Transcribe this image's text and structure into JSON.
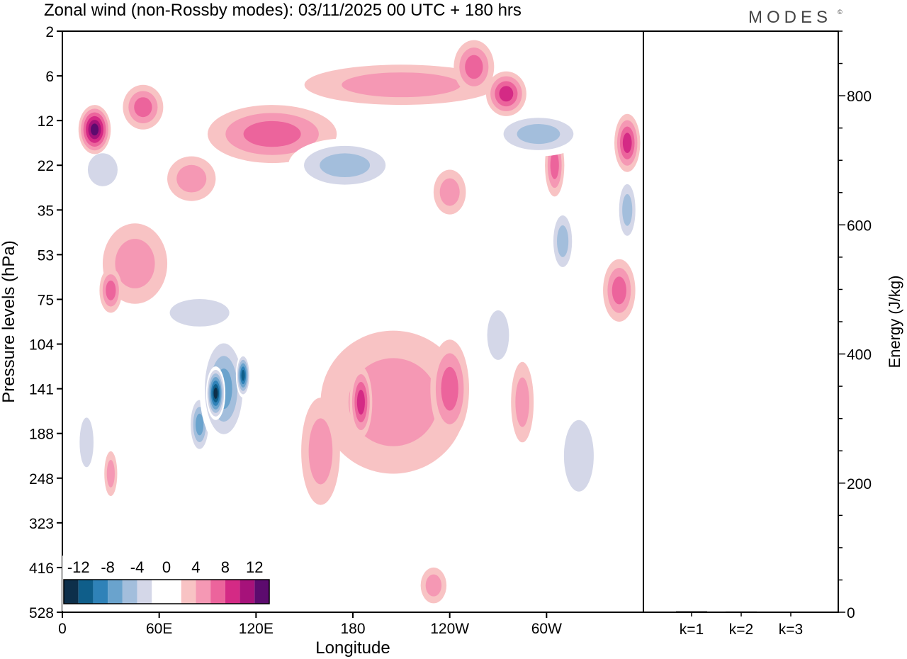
{
  "header": {
    "title": "Zonal wind (non-Rossby modes):  03/11/2025  00 UTC  + 180 hrs",
    "brand": "MODES",
    "brand_mark": "©"
  },
  "chart_data": [
    {
      "type": "heatmap",
      "title": "Zonal wind (non-Rossby modes)",
      "xlabel": "Longitude",
      "ylabel": "Pressure levels (hPa)",
      "x_ticks": [
        "0",
        "60E",
        "120E",
        "180",
        "120W",
        "60W"
      ],
      "x_tick_values": [
        0,
        60,
        120,
        180,
        240,
        300
      ],
      "xlim": [
        0,
        360
      ],
      "y_ticks": [
        "2",
        "6",
        "12",
        "22",
        "35",
        "53",
        "75",
        "104",
        "141",
        "188",
        "248",
        "323",
        "416",
        "528"
      ],
      "legend": {
        "labels": [
          "-12",
          "-8",
          "-4",
          "0",
          "4",
          "8",
          "12"
        ],
        "colors": [
          "#0d2f4a",
          "#0f5e8a",
          "#2f82b8",
          "#6aa3cd",
          "#a3bedc",
          "#d4d7e8",
          "#ffffff",
          "#ffffff",
          "#f8c3c4",
          "#f598b4",
          "#ec649c",
          "#d42a85",
          "#a6127a",
          "#5c0b6e"
        ],
        "placement": "bottom-left"
      },
      "blobs": [
        {
          "lon": 95,
          "lev": 8.1,
          "width": 12,
          "height": 1.2,
          "value": -13
        },
        {
          "lon": 112,
          "lev": 7.7,
          "width": 9,
          "height": 1.0,
          "value": -12
        },
        {
          "lon": 100,
          "lev": 8.0,
          "width": 30,
          "height": 2.6,
          "value": -8
        },
        {
          "lon": 85,
          "lev": 8.8,
          "width": 14,
          "height": 1.4,
          "value": -7
        },
        {
          "lon": 205,
          "lev": 8.3,
          "width": 90,
          "height": 3.2,
          "value": 4
        },
        {
          "lon": 185,
          "lev": 8.3,
          "width": 14,
          "height": 1.6,
          "value": 8
        },
        {
          "lon": 240,
          "lev": 8.0,
          "width": 24,
          "height": 2.2,
          "value": 6
        },
        {
          "lon": 160,
          "lev": 9.4,
          "width": 24,
          "height": 2.4,
          "value": 4
        },
        {
          "lon": 20,
          "lev": 2.2,
          "width": 20,
          "height": 1.1,
          "value": 12
        },
        {
          "lon": 50,
          "lev": 1.7,
          "width": 25,
          "height": 1.0,
          "value": 6
        },
        {
          "lon": 130,
          "lev": 2.3,
          "width": 80,
          "height": 1.3,
          "value": 5
        },
        {
          "lon": 210,
          "lev": 1.2,
          "width": 120,
          "height": 0.9,
          "value": 4
        },
        {
          "lon": 275,
          "lev": 1.4,
          "width": 25,
          "height": 1.0,
          "value": 8
        },
        {
          "lon": 255,
          "lev": 0.8,
          "width": 25,
          "height": 1.2,
          "value": 6
        },
        {
          "lon": 350,
          "lev": 2.5,
          "width": 16,
          "height": 1.3,
          "value": 8
        },
        {
          "lon": 305,
          "lev": 3.0,
          "width": 12,
          "height": 1.4,
          "value": 6
        },
        {
          "lon": 295,
          "lev": 2.3,
          "width": 60,
          "height": 1.0,
          "value": -6
        },
        {
          "lon": 175,
          "lev": 3.0,
          "width": 70,
          "height": 1.2,
          "value": -5
        },
        {
          "lon": 25,
          "lev": 3.1,
          "width": 30,
          "height": 1.2,
          "value": -4
        },
        {
          "lon": 350,
          "lev": 4.0,
          "width": 14,
          "height": 1.6,
          "value": -5
        },
        {
          "lon": 45,
          "lev": 5.2,
          "width": 40,
          "height": 1.8,
          "value": 4
        },
        {
          "lon": 30,
          "lev": 5.8,
          "width": 14,
          "height": 1.0,
          "value": 6
        },
        {
          "lon": 85,
          "lev": 6.3,
          "width": 60,
          "height": 1.0,
          "value": -4
        },
        {
          "lon": 310,
          "lev": 4.7,
          "width": 16,
          "height": 1.6,
          "value": -5
        },
        {
          "lon": 270,
          "lev": 6.8,
          "width": 22,
          "height": 1.8,
          "value": -4
        },
        {
          "lon": 345,
          "lev": 5.8,
          "width": 20,
          "height": 1.4,
          "value": 5
        },
        {
          "lon": 320,
          "lev": 9.5,
          "width": 30,
          "height": 2.6,
          "value": -3
        },
        {
          "lon": 15,
          "lev": 9.2,
          "width": 14,
          "height": 1.8,
          "value": -3
        },
        {
          "lon": 285,
          "lev": 8.3,
          "width": 14,
          "height": 1.8,
          "value": 4
        },
        {
          "lon": 230,
          "lev": 12.4,
          "width": 16,
          "height": 0.8,
          "value": 4
        },
        {
          "lon": 30,
          "lev": 9.9,
          "width": 8,
          "height": 1.0,
          "value": 4
        },
        {
          "lon": 240,
          "lev": 3.6,
          "width": 20,
          "height": 1.0,
          "value": 3
        },
        {
          "lon": 80,
          "lev": 3.3,
          "width": 30,
          "height": 1.0,
          "value": 3
        }
      ]
    },
    {
      "type": "bar",
      "categories": [
        "k=1",
        "k=2",
        "k=3"
      ],
      "values": [
        1.5,
        1.2,
        0.8
      ],
      "ylabel": "Energy (J/kg)",
      "ylim": [
        0,
        900
      ],
      "y_ticks": [
        0,
        200,
        400,
        600,
        800
      ]
    }
  ]
}
